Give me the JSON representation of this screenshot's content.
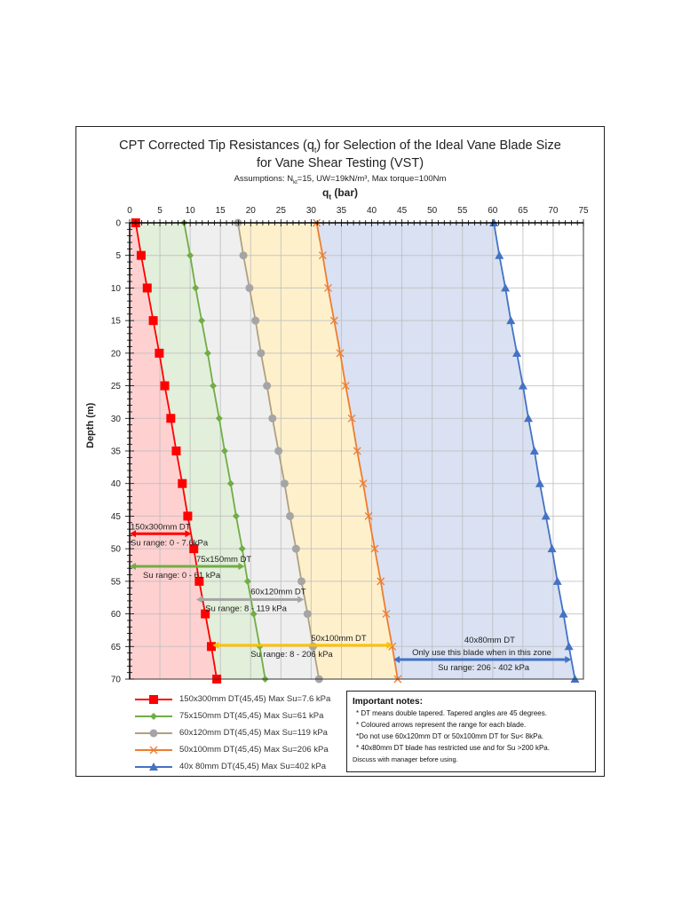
{
  "chart_data": {
    "type": "line",
    "title": "CPT Corrected Tip Resistances (q_t) for Selection of the Ideal Vane Blade Size",
    "title_line2": "for Vane Shear Testing (VST)",
    "subtitle": "Assumptions: N_kt=15, UW=19kN/m³, Max torque=100Nm",
    "xlabel": "qt (bar)",
    "ylabel": "Depth (m)",
    "xlim": [
      0,
      75
    ],
    "ylim": [
      0,
      70
    ],
    "y_inverted": true,
    "x_axis_position": "top",
    "x_ticks": [
      0,
      5,
      10,
      15,
      20,
      25,
      30,
      35,
      40,
      45,
      50,
      55,
      60,
      65,
      70,
      75
    ],
    "y_ticks": [
      0,
      5,
      10,
      15,
      20,
      25,
      30,
      35,
      40,
      45,
      50,
      55,
      60,
      65,
      70
    ],
    "grid": true,
    "depth": [
      0,
      5,
      10,
      15,
      20,
      25,
      30,
      35,
      40,
      45,
      50,
      55,
      60,
      65,
      70
    ],
    "series": [
      {
        "name": "150x300mm DT(45,45) Max Su=7.6 kPa",
        "color": "#ff0000",
        "fill": "#ffd0d0",
        "marker": "square",
        "values": [
          1.0,
          1.9,
          2.9,
          3.9,
          4.9,
          5.8,
          6.8,
          7.7,
          8.7,
          9.6,
          10.6,
          11.5,
          12.5,
          13.5,
          14.4
        ]
      },
      {
        "name": "75x150mm DT(45,45) Max Su=61 kPa",
        "color": "#70ad47",
        "fill": "#e2efda",
        "marker": "diamond",
        "values": [
          9.0,
          10.0,
          10.9,
          11.9,
          12.9,
          13.8,
          14.8,
          15.7,
          16.7,
          17.6,
          18.6,
          19.5,
          20.5,
          21.5,
          22.4
        ]
      },
      {
        "name": "60x120mm DT(45,45) Max Su=119 kPa",
        "color": "#a5a5a5",
        "line_color": "#b0a080",
        "fill": "#efefef",
        "marker": "circle",
        "values": [
          17.9,
          18.8,
          19.8,
          20.8,
          21.7,
          22.7,
          23.6,
          24.6,
          25.6,
          26.5,
          27.5,
          28.4,
          29.4,
          30.3,
          31.3
        ]
      },
      {
        "name": "50x100mm DT(45,45) Max Su=206 kPa",
        "color": "#ed7d31",
        "fill": "#fff0cc",
        "marker": "x",
        "values": [
          30.9,
          31.9,
          32.8,
          33.8,
          34.8,
          35.7,
          36.7,
          37.6,
          38.6,
          39.5,
          40.5,
          41.5,
          42.4,
          43.4,
          44.3
        ]
      },
      {
        "name": "40x 80mm  DT(45,45) Max Su=402 kPa",
        "color": "#4472c4",
        "fill": "#d9e1f2",
        "marker": "triangle",
        "values": [
          60.2,
          61.1,
          62.1,
          63.0,
          64.0,
          65.0,
          65.9,
          66.9,
          67.8,
          68.8,
          69.8,
          70.7,
          71.7,
          72.6,
          73.6
        ]
      }
    ],
    "annotations": [
      {
        "label": "150x300mm DT",
        "sublabel": "Su range: 0 - 7.6kPa",
        "depth": 47.7,
        "from": 0,
        "to": 10.2,
        "color": "#ff0000",
        "arrows": "both"
      },
      {
        "label": "75x150mm DT",
        "sublabel": "Su range:  0 - 61 kPa",
        "depth": 52.7,
        "from": 0,
        "to": 19.0,
        "color": "#70ad47",
        "arrows": "both"
      },
      {
        "label": "60x120mm DT",
        "sublabel": "Su range: 8 - 119 kPa",
        "depth": 57.8,
        "from": 11.0,
        "to": 28.8,
        "color": "#a5a5a5",
        "arrows": "both"
      },
      {
        "label": "50x100mm DT",
        "sublabel": "Su range: 8 - 206 kPa",
        "depth": 64.8,
        "from": 13.7,
        "to": 43.5,
        "color": "#ffc000",
        "arrows": "both"
      },
      {
        "label": "40x80mm DT",
        "sublabel": "Only use this blade when in this zone",
        "sublabel2": "Su range: 206 - 402 kPa",
        "depth": 67.0,
        "from": 43.6,
        "to": 73.0,
        "color": "#4472c4",
        "arrows": "both"
      }
    ],
    "legend_position": "bottom-left"
  },
  "notes": {
    "heading": "Important notes",
    "items": [
      "* DT means double tapered. Tapered angles are 45 degrees.",
      "* Coloured arrows represent the range for each blade.",
      "*Do not use 60x120mm DT or 50x100mm DT for Su< 8kPa.",
      "* 40x80mm DT blade has restricted use and for Su >200 kPa.",
      "Discuss with manager before using."
    ]
  },
  "header": {
    "title_line1": "CPT Corrected Tip Resistances (q",
    "title_sub": "t",
    "title_line1_end": ") for Selection of the Ideal Vane Blade Size",
    "title_line2": "for Vane Shear Testing (VST)",
    "assumptions_pre": "Assumptions: N",
    "assumptions_sub": "kt",
    "assumptions_post": "=15, UW=19kN/m³, Max torque=100Nm",
    "x_title": "q",
    "x_title_sub": "t",
    "x_title_post": " (bar)",
    "y_title": "Depth (m)"
  }
}
